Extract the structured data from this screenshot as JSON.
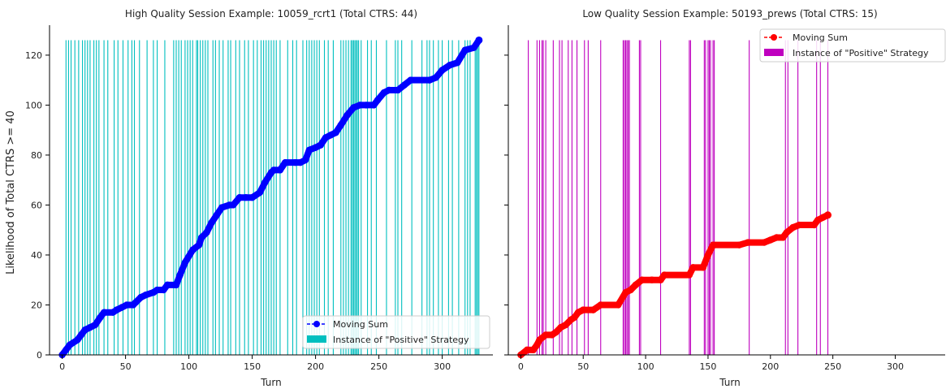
{
  "figure": {
    "ylabel": "Likelihood of Total CTRS >= 40"
  },
  "chart_data": [
    {
      "type": "line",
      "title": "High Quality Session Example: 10059_rcrt1 (Total CTRS: 44)",
      "xlabel": "Turn",
      "ylabel": "Likelihood of Total CTRS >= 40",
      "xlim": [
        -10,
        340
      ],
      "ylim": [
        0,
        132
      ],
      "xticks": [
        0,
        50,
        100,
        150,
        200,
        250,
        300
      ],
      "yticks": [
        0,
        20,
        40,
        60,
        80,
        100,
        120
      ],
      "legend_position": "lower-right",
      "series": [
        {
          "name": "Moving Sum",
          "color": "#0000ff",
          "marker": "circle",
          "points": [
            [
              0,
              0
            ],
            [
              3,
              2
            ],
            [
              6,
              4
            ],
            [
              12,
              6
            ],
            [
              15,
              8
            ],
            [
              18,
              10
            ],
            [
              22,
              11
            ],
            [
              26,
              12
            ],
            [
              30,
              15
            ],
            [
              33,
              17
            ],
            [
              40,
              17
            ],
            [
              43,
              18
            ],
            [
              47,
              19
            ],
            [
              51,
              20
            ],
            [
              56,
              20
            ],
            [
              58,
              21
            ],
            [
              62,
              23
            ],
            [
              66,
              24
            ],
            [
              72,
              25
            ],
            [
              75,
              26
            ],
            [
              80,
              26
            ],
            [
              83,
              28
            ],
            [
              90,
              28
            ],
            [
              93,
              32
            ],
            [
              97,
              37
            ],
            [
              103,
              42
            ],
            [
              108,
              44
            ],
            [
              110,
              47
            ],
            [
              114,
              49
            ],
            [
              118,
              53
            ],
            [
              122,
              56
            ],
            [
              126,
              59
            ],
            [
              132,
              60
            ],
            [
              135,
              60
            ],
            [
              140,
              63
            ],
            [
              145,
              63
            ],
            [
              150,
              63
            ],
            [
              156,
              65
            ],
            [
              160,
              69
            ],
            [
              165,
              73
            ],
            [
              167,
              74
            ],
            [
              172,
              74
            ],
            [
              176,
              77
            ],
            [
              184,
              77
            ],
            [
              188,
              77
            ],
            [
              192,
              78
            ],
            [
              195,
              82
            ],
            [
              200,
              83
            ],
            [
              204,
              84
            ],
            [
              208,
              87
            ],
            [
              212,
              88
            ],
            [
              216,
              89
            ],
            [
              220,
              92
            ],
            [
              225,
              96
            ],
            [
              230,
              99
            ],
            [
              235,
              100
            ],
            [
              240,
              100
            ],
            [
              246,
              100
            ],
            [
              249,
              102
            ],
            [
              254,
              105
            ],
            [
              258,
              106
            ],
            [
              265,
              106
            ],
            [
              270,
              108
            ],
            [
              275,
              110
            ],
            [
              290,
              110
            ],
            [
              295,
              111
            ],
            [
              300,
              114
            ],
            [
              306,
              116
            ],
            [
              312,
              117
            ],
            [
              318,
              122
            ],
            [
              325,
              123
            ],
            [
              329,
              126
            ]
          ]
        },
        {
          "name": "Instance of \"Positive\" Strategy",
          "type": "bar",
          "color": "#00bfbf",
          "height": 126,
          "x": [
            3,
            5,
            7,
            10,
            13,
            16,
            18,
            20,
            22,
            25,
            27,
            29,
            33,
            36,
            41,
            44,
            48,
            52,
            55,
            57,
            61,
            67,
            72,
            75,
            81,
            88,
            90,
            92,
            94,
            97,
            99,
            101,
            103,
            106,
            107,
            109,
            111,
            113,
            115,
            119,
            121,
            124,
            127,
            131,
            133,
            137,
            140,
            144,
            147,
            151,
            154,
            157,
            159,
            161,
            163,
            165,
            167,
            169,
            172,
            178,
            182,
            185,
            190,
            193,
            195,
            197,
            199,
            201,
            203,
            207,
            210,
            214,
            220,
            222,
            224,
            226,
            228,
            229,
            230,
            231,
            232,
            233,
            234,
            236,
            241,
            244,
            248,
            256,
            263,
            265,
            268,
            276,
            284,
            288,
            290,
            293,
            297,
            300,
            305,
            308,
            313,
            318,
            320,
            322,
            326,
            327,
            328,
            329
          ]
        }
      ]
    },
    {
      "type": "line",
      "title": "Low Quality Session Example: 50193_prews (Total CTRS: 15)",
      "xlabel": "Turn",
      "ylabel": "",
      "xlim": [
        -10,
        340
      ],
      "ylim": [
        0,
        132
      ],
      "xticks": [
        0,
        50,
        100,
        150,
        200,
        250,
        300
      ],
      "yticks": [
        0,
        20,
        40,
        60,
        80,
        100,
        120
      ],
      "legend_position": "upper-right",
      "series": [
        {
          "name": "Moving Sum",
          "color": "#ff0000",
          "marker": "circle",
          "points": [
            [
              0,
              0
            ],
            [
              5,
              2
            ],
            [
              10,
              2
            ],
            [
              13,
              4
            ],
            [
              15,
              6
            ],
            [
              20,
              8
            ],
            [
              25,
              8
            ],
            [
              28,
              9
            ],
            [
              32,
              11
            ],
            [
              36,
              12
            ],
            [
              40,
              14
            ],
            [
              43,
              15
            ],
            [
              46,
              17
            ],
            [
              50,
              18
            ],
            [
              58,
              18
            ],
            [
              64,
              20
            ],
            [
              78,
              20
            ],
            [
              84,
              25
            ],
            [
              88,
              26
            ],
            [
              92,
              28
            ],
            [
              97,
              30
            ],
            [
              105,
              30
            ],
            [
              112,
              30
            ],
            [
              115,
              32
            ],
            [
              135,
              32
            ],
            [
              138,
              35
            ],
            [
              146,
              35
            ],
            [
              150,
              40
            ],
            [
              154,
              44
            ],
            [
              175,
              44
            ],
            [
              182,
              45
            ],
            [
              195,
              45
            ],
            [
              200,
              46
            ],
            [
              205,
              47
            ],
            [
              210,
              47
            ],
            [
              213,
              49
            ],
            [
              218,
              51
            ],
            [
              223,
              52
            ],
            [
              235,
              52
            ],
            [
              238,
              54
            ],
            [
              242,
              55
            ],
            [
              246,
              56
            ]
          ]
        },
        {
          "name": "Instance of \"Positive\" Strategy",
          "type": "bar",
          "color": "#bf00bf",
          "height": 126,
          "x": [
            6,
            13,
            15,
            17,
            18,
            20,
            26,
            31,
            33,
            38,
            41,
            45,
            51,
            54,
            64,
            82,
            83,
            84,
            85,
            86,
            87,
            95,
            96,
            112,
            135,
            136,
            147,
            148,
            150,
            151,
            152,
            154,
            155,
            183,
            212,
            214,
            222,
            237,
            240,
            246
          ]
        }
      ]
    }
  ]
}
